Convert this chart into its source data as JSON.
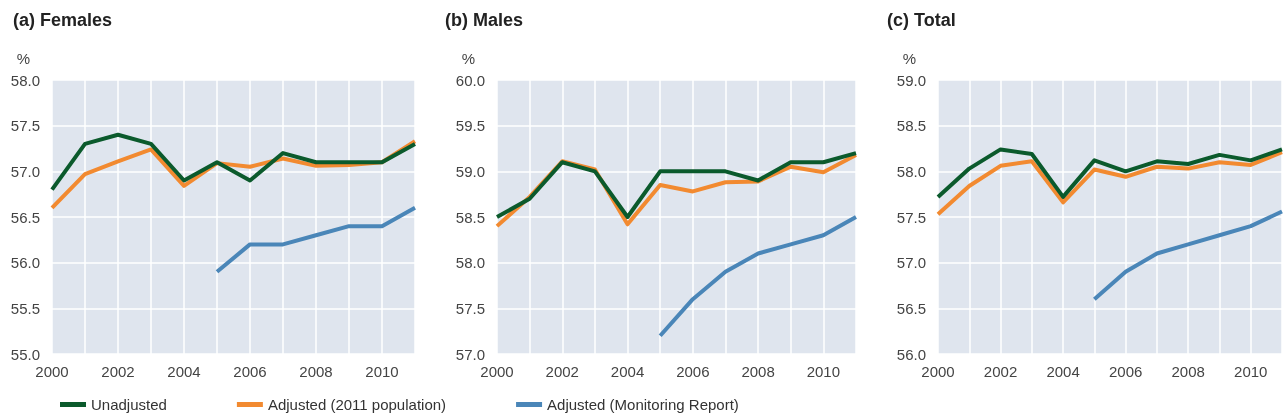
{
  "chart_data": [
    {
      "type": "line",
      "title": "(a) Females",
      "ylabel": "%",
      "x": [
        2000,
        2001,
        2002,
        2003,
        2004,
        2005,
        2006,
        2007,
        2008,
        2009,
        2010,
        2011
      ],
      "xlim": [
        2000,
        2011
      ],
      "xticks": [
        2000,
        {
          "value": 2001,
          "label": null
        },
        2002,
        {
          "value": 2003,
          "label": null
        },
        2004,
        {
          "value": 2005,
          "label": null
        },
        2006,
        {
          "value": 2007,
          "label": null
        },
        2008,
        {
          "value": 2009,
          "label": null
        },
        2010,
        {
          "value": 2011,
          "label": null
        }
      ],
      "ylim": [
        55,
        58
      ],
      "yticks": [
        {
          "value": 55,
          "label": "55.0"
        },
        55.5,
        {
          "value": 56,
          "label": "56.0"
        },
        56.5,
        {
          "value": 57,
          "label": "57.0"
        },
        57.5,
        {
          "value": 58,
          "label": "58.0"
        }
      ],
      "grid": true,
      "legend": "bottom",
      "marker": "none",
      "line_style": "solid",
      "series": [
        {
          "name": "Unadjusted",
          "color": "#0b5a2c",
          "values": [
            56.8,
            57.3,
            57.4,
            57.3,
            56.9,
            57.1,
            56.9,
            57.2,
            57.1,
            57.1,
            57.1,
            57.3
          ]
        },
        {
          "name": "Adjusted (2011 population)",
          "color": "#f28a30",
          "values": [
            56.6,
            56.97,
            57.11,
            57.24,
            56.84,
            57.09,
            57.05,
            57.14,
            57.06,
            57.07,
            57.1,
            57.33
          ]
        },
        {
          "name": "Adjusted (Monitoring Report)",
          "color": "#4a86b8",
          "values": [
            null,
            null,
            null,
            null,
            null,
            55.9,
            56.2,
            56.2,
            56.3,
            56.4,
            56.4,
            56.6
          ]
        }
      ]
    },
    {
      "type": "line",
      "title": "(b) Males",
      "ylabel": "%",
      "x": [
        2000,
        2001,
        2002,
        2003,
        2004,
        2005,
        2006,
        2007,
        2008,
        2009,
        2010,
        2011
      ],
      "xlim": [
        2000,
        2011
      ],
      "xticks": [
        2000,
        {
          "value": 2001,
          "label": null
        },
        2002,
        {
          "value": 2003,
          "label": null
        },
        2004,
        {
          "value": 2005,
          "label": null
        },
        2006,
        {
          "value": 2007,
          "label": null
        },
        2008,
        {
          "value": 2009,
          "label": null
        },
        2010,
        {
          "value": 2011,
          "label": null
        }
      ],
      "ylim": [
        57,
        60
      ],
      "yticks": [
        {
          "value": 57,
          "label": "57.0"
        },
        57.5,
        {
          "value": 58,
          "label": "58.0"
        },
        58.5,
        {
          "value": 59,
          "label": "59.0"
        },
        59.5,
        {
          "value": 60,
          "label": "60.0"
        }
      ],
      "grid": true,
      "marker": "none",
      "line_style": "solid",
      "series": [
        {
          "color": "#0b5a2c",
          "values": [
            58.5,
            58.7,
            59.1,
            59.0,
            58.5,
            59.0,
            59.0,
            59.0,
            58.9,
            59.1,
            59.1,
            59.2
          ]
        },
        {
          "color": "#f28a30",
          "values": [
            58.4,
            58.72,
            59.11,
            59.02,
            58.42,
            58.85,
            58.78,
            58.88,
            58.89,
            59.05,
            58.99,
            59.18
          ]
        },
        {
          "color": "#4a86b8",
          "values": [
            null,
            null,
            null,
            null,
            null,
            57.2,
            57.6,
            57.9,
            58.1,
            58.2,
            58.3,
            58.5
          ]
        }
      ]
    },
    {
      "type": "line",
      "title": "(c) Total",
      "ylabel": "%",
      "x": [
        2000,
        2001,
        2002,
        2003,
        2004,
        2005,
        2006,
        2007,
        2008,
        2009,
        2010,
        2011
      ],
      "xlim": [
        2000,
        2011
      ],
      "xticks": [
        2000,
        {
          "value": 2001,
          "label": null
        },
        2002,
        {
          "value": 2003,
          "label": null
        },
        2004,
        {
          "value": 2005,
          "label": null
        },
        2006,
        {
          "value": 2007,
          "label": null
        },
        2008,
        {
          "value": 2009,
          "label": null
        },
        2010,
        {
          "value": 2011,
          "label": null
        }
      ],
      "ylim": [
        56,
        59
      ],
      "yticks": [
        {
          "value": 56,
          "label": "56.0"
        },
        56.5,
        {
          "value": 57,
          "label": "57.0"
        },
        57.5,
        {
          "value": 58,
          "label": "58.0"
        },
        58.5,
        {
          "value": 59,
          "label": "59.0"
        }
      ],
      "grid": true,
      "marker": "none",
      "line_style": "solid",
      "series": [
        {
          "color": "#0b5a2c",
          "values": [
            57.72,
            58.03,
            58.24,
            58.19,
            57.72,
            58.12,
            58.0,
            58.11,
            58.08,
            58.18,
            58.12,
            58.24
          ]
        },
        {
          "color": "#f28a30",
          "values": [
            57.53,
            57.84,
            58.06,
            58.11,
            57.66,
            58.02,
            57.94,
            58.05,
            58.03,
            58.1,
            58.07,
            58.21
          ]
        },
        {
          "color": "#4a86b8",
          "values": [
            null,
            null,
            null,
            null,
            null,
            56.6,
            56.9,
            57.1,
            57.2,
            57.3,
            57.4,
            57.56
          ]
        }
      ]
    }
  ]
}
